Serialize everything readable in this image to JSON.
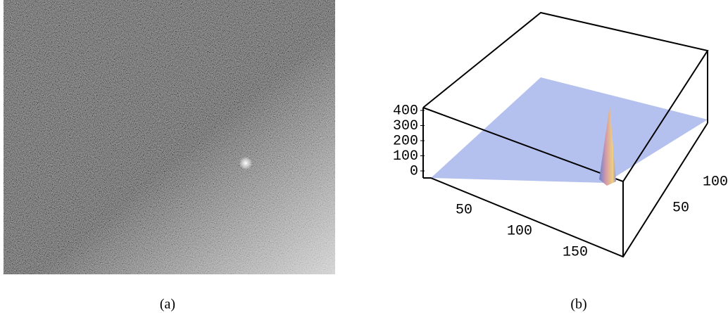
{
  "figure": {
    "panels": [
      {
        "caption": "(a)"
      },
      {
        "caption": "(b)",
        "z_ticks": [
          0,
          100,
          200,
          300,
          400
        ],
        "x_ticks": [
          50,
          100,
          150
        ],
        "y_ticks": [
          50,
          100
        ]
      }
    ]
  }
}
